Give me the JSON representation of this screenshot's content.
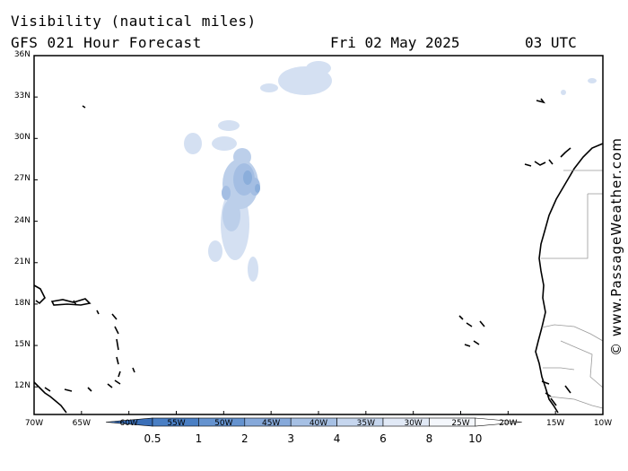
{
  "header": {
    "title": "Visibility (nautical miles)",
    "subtitle": "GFS 021 Hour Forecast",
    "date": "Fri 02 May 2025",
    "time": "03 UTC"
  },
  "credit": "© www.PassageWeather.com",
  "map": {
    "lat_labels": [
      "36N",
      "33N",
      "30N",
      "27N",
      "24N",
      "21N",
      "18N",
      "15N",
      "12N"
    ],
    "lat_values": [
      36,
      33,
      30,
      27,
      24,
      21,
      18,
      15,
      12
    ],
    "lon_labels": [
      "70W",
      "65W",
      "60W",
      "55W",
      "50W",
      "45W",
      "40W",
      "35W",
      "30W",
      "25W",
      "20W",
      "15W",
      "10W"
    ],
    "lon_values": [
      -70,
      -65,
      -60,
      -55,
      -50,
      -45,
      -40,
      -35,
      -30,
      -25,
      -20,
      -15,
      -10
    ],
    "extent": {
      "lon_min": -70,
      "lon_max": -10,
      "lat_min": 10,
      "lat_max": 36
    }
  },
  "colorbar": {
    "labels": [
      "0.5",
      "1",
      "2",
      "3",
      "4",
      "6",
      "8",
      "10"
    ],
    "colors": [
      "#3a6fb8",
      "#4a7fc4",
      "#6593cf",
      "#86a9da",
      "#a6c0e4",
      "#c6d6ee",
      "#e1e9f6",
      "#f4f7fc",
      "#ffffff"
    ]
  },
  "colors": {
    "visibility_patch": "#6f98cf",
    "coast": "#000000",
    "border": "#999999"
  }
}
